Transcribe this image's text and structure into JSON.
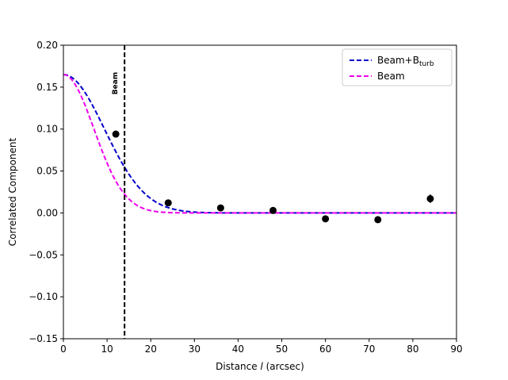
{
  "chart_data": {
    "type": "scatter",
    "xlabel_prefix": "Distance ",
    "xlabel_var": "l",
    "xlabel_suffix": " (arcsec)",
    "ylabel": "Correlated Component",
    "xlim": [
      0,
      90
    ],
    "ylim": [
      -0.15,
      0.2
    ],
    "xticks": [
      0,
      10,
      20,
      30,
      40,
      50,
      60,
      70,
      80,
      90
    ],
    "yticks": [
      -0.15,
      -0.1,
      -0.05,
      0.0,
      0.05,
      0.1,
      0.15,
      0.2
    ],
    "ytick_labels": [
      "−0.15",
      "−0.10",
      "−0.05",
      "0.00",
      "0.05",
      "0.10",
      "0.15",
      "0.20"
    ],
    "grid": false,
    "legend": "top-right",
    "points": {
      "x": [
        12,
        24,
        36,
        48,
        60,
        72,
        84
      ],
      "y": [
        0.094,
        0.012,
        0.006,
        0.003,
        -0.007,
        -0.008,
        0.017
      ],
      "yerr": [
        0.003,
        0.003,
        0.003,
        0.003,
        0.003,
        0.003,
        0.005
      ],
      "color": "#000000"
    },
    "series": [
      {
        "name_main": "Beam+B",
        "name_sub": "turb",
        "type": "line",
        "style": "dashed",
        "color": "#0000cc",
        "amplitude": 0.165,
        "sigma": 9.4
      },
      {
        "name_main": "Beam",
        "name_sub": "",
        "type": "line",
        "style": "dashed",
        "color": "#ee00ee",
        "amplitude": 0.165,
        "sigma": 7.0
      }
    ],
    "vline": {
      "x": 14,
      "label": "Beam",
      "color": "#000000"
    }
  }
}
